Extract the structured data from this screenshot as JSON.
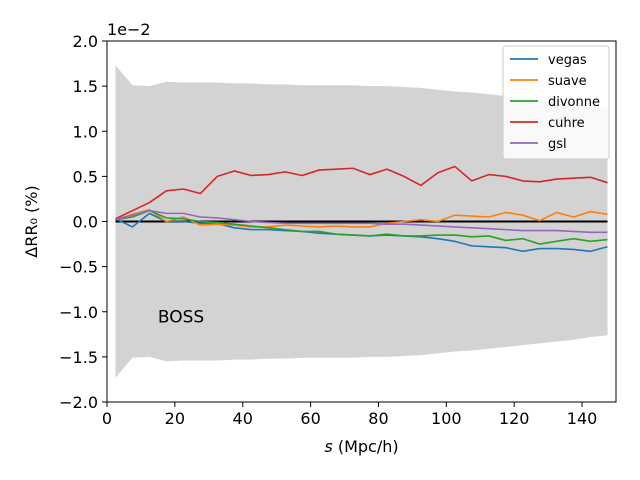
{
  "chart_data": {
    "type": "line",
    "xlabel_italic": "s",
    "xlabel_rest": " (Mpc/h)",
    "ylabel": "ΔRR₀ (%)",
    "offset_text": "1e−2",
    "annotation": "BOSS",
    "legend_position": "top-right",
    "grid": false,
    "xlim": [
      0,
      150
    ],
    "ylim": [
      -2.0,
      2.0
    ],
    "x_ticks": [
      0,
      20,
      40,
      60,
      80,
      100,
      120,
      140
    ],
    "x_tick_labels": [
      "0",
      "20",
      "40",
      "60",
      "80",
      "100",
      "120",
      "140"
    ],
    "y_ticks": [
      -2.0,
      -1.5,
      -1.0,
      -0.5,
      0.0,
      0.5,
      1.0,
      1.5,
      2.0
    ],
    "y_tick_labels": [
      "−2.0",
      "−1.5",
      "−1.0",
      "−0.5",
      "0.0",
      "0.5",
      "1.0",
      "1.5",
      "2.0"
    ],
    "x": [
      2.5,
      7.5,
      12.5,
      17.5,
      22.5,
      27.5,
      32.5,
      37.5,
      42.5,
      47.5,
      52.5,
      57.5,
      62.5,
      67.5,
      72.5,
      77.5,
      82.5,
      87.5,
      92.5,
      97.5,
      102.5,
      107.5,
      112.5,
      117.5,
      122.5,
      127.5,
      132.5,
      137.5,
      142.5,
      147.5
    ],
    "band": {
      "color": "#d3d3d3",
      "upper": [
        1.73,
        1.51,
        1.5,
        1.55,
        1.54,
        1.54,
        1.54,
        1.53,
        1.53,
        1.52,
        1.52,
        1.51,
        1.51,
        1.51,
        1.51,
        1.5,
        1.5,
        1.49,
        1.48,
        1.46,
        1.44,
        1.43,
        1.41,
        1.39,
        1.37,
        1.35,
        1.33,
        1.31,
        1.28,
        1.26
      ],
      "lower": [
        -1.73,
        -1.51,
        -1.5,
        -1.55,
        -1.54,
        -1.54,
        -1.54,
        -1.53,
        -1.53,
        -1.52,
        -1.52,
        -1.51,
        -1.51,
        -1.51,
        -1.51,
        -1.5,
        -1.5,
        -1.49,
        -1.48,
        -1.46,
        -1.44,
        -1.43,
        -1.41,
        -1.39,
        -1.37,
        -1.35,
        -1.33,
        -1.31,
        -1.28,
        -1.26
      ]
    },
    "zero_line_color": "#000000",
    "series": [
      {
        "name": "vegas",
        "color": "#1f77b4",
        "values": [
          0.03,
          -0.06,
          0.09,
          0.0,
          0.0,
          -0.02,
          -0.02,
          -0.07,
          -0.09,
          -0.09,
          -0.1,
          -0.11,
          -0.13,
          -0.14,
          -0.15,
          -0.16,
          -0.15,
          -0.16,
          -0.17,
          -0.19,
          -0.22,
          -0.27,
          -0.28,
          -0.29,
          -0.33,
          -0.3,
          -0.3,
          -0.31,
          -0.33,
          -0.28
        ]
      },
      {
        "name": "suave",
        "color": "#ff7f0e",
        "values": [
          0.02,
          0.08,
          0.13,
          0.0,
          0.05,
          -0.04,
          -0.03,
          -0.04,
          -0.06,
          -0.06,
          -0.04,
          -0.05,
          -0.06,
          -0.05,
          -0.06,
          -0.06,
          -0.02,
          0.0,
          0.02,
          0.0,
          0.07,
          0.06,
          0.05,
          0.1,
          0.07,
          0.01,
          0.1,
          0.05,
          0.11,
          0.08
        ]
      },
      {
        "name": "divonne",
        "color": "#2ca02c",
        "values": [
          0.02,
          0.05,
          0.12,
          0.04,
          0.03,
          0.0,
          -0.01,
          -0.03,
          -0.05,
          -0.07,
          -0.09,
          -0.11,
          -0.11,
          -0.14,
          -0.15,
          -0.16,
          -0.14,
          -0.16,
          -0.16,
          -0.15,
          -0.15,
          -0.17,
          -0.16,
          -0.21,
          -0.19,
          -0.25,
          -0.22,
          -0.19,
          -0.22,
          -0.2
        ]
      },
      {
        "name": "cuhre",
        "color": "#d62728",
        "values": [
          0.03,
          0.12,
          0.21,
          0.34,
          0.36,
          0.31,
          0.5,
          0.56,
          0.51,
          0.52,
          0.55,
          0.51,
          0.57,
          0.58,
          0.59,
          0.52,
          0.58,
          0.5,
          0.4,
          0.54,
          0.61,
          0.45,
          0.52,
          0.5,
          0.45,
          0.44,
          0.47,
          0.48,
          0.49,
          0.43
        ]
      },
      {
        "name": "gsl",
        "color": "#9467bd",
        "values": [
          0.02,
          0.07,
          0.12,
          0.09,
          0.09,
          0.05,
          0.04,
          0.02,
          0.0,
          -0.01,
          -0.02,
          -0.02,
          -0.02,
          -0.02,
          -0.02,
          -0.02,
          -0.03,
          -0.03,
          -0.04,
          -0.05,
          -0.06,
          -0.07,
          -0.08,
          -0.09,
          -0.1,
          -0.1,
          -0.1,
          -0.11,
          -0.12,
          -0.12
        ]
      }
    ]
  }
}
